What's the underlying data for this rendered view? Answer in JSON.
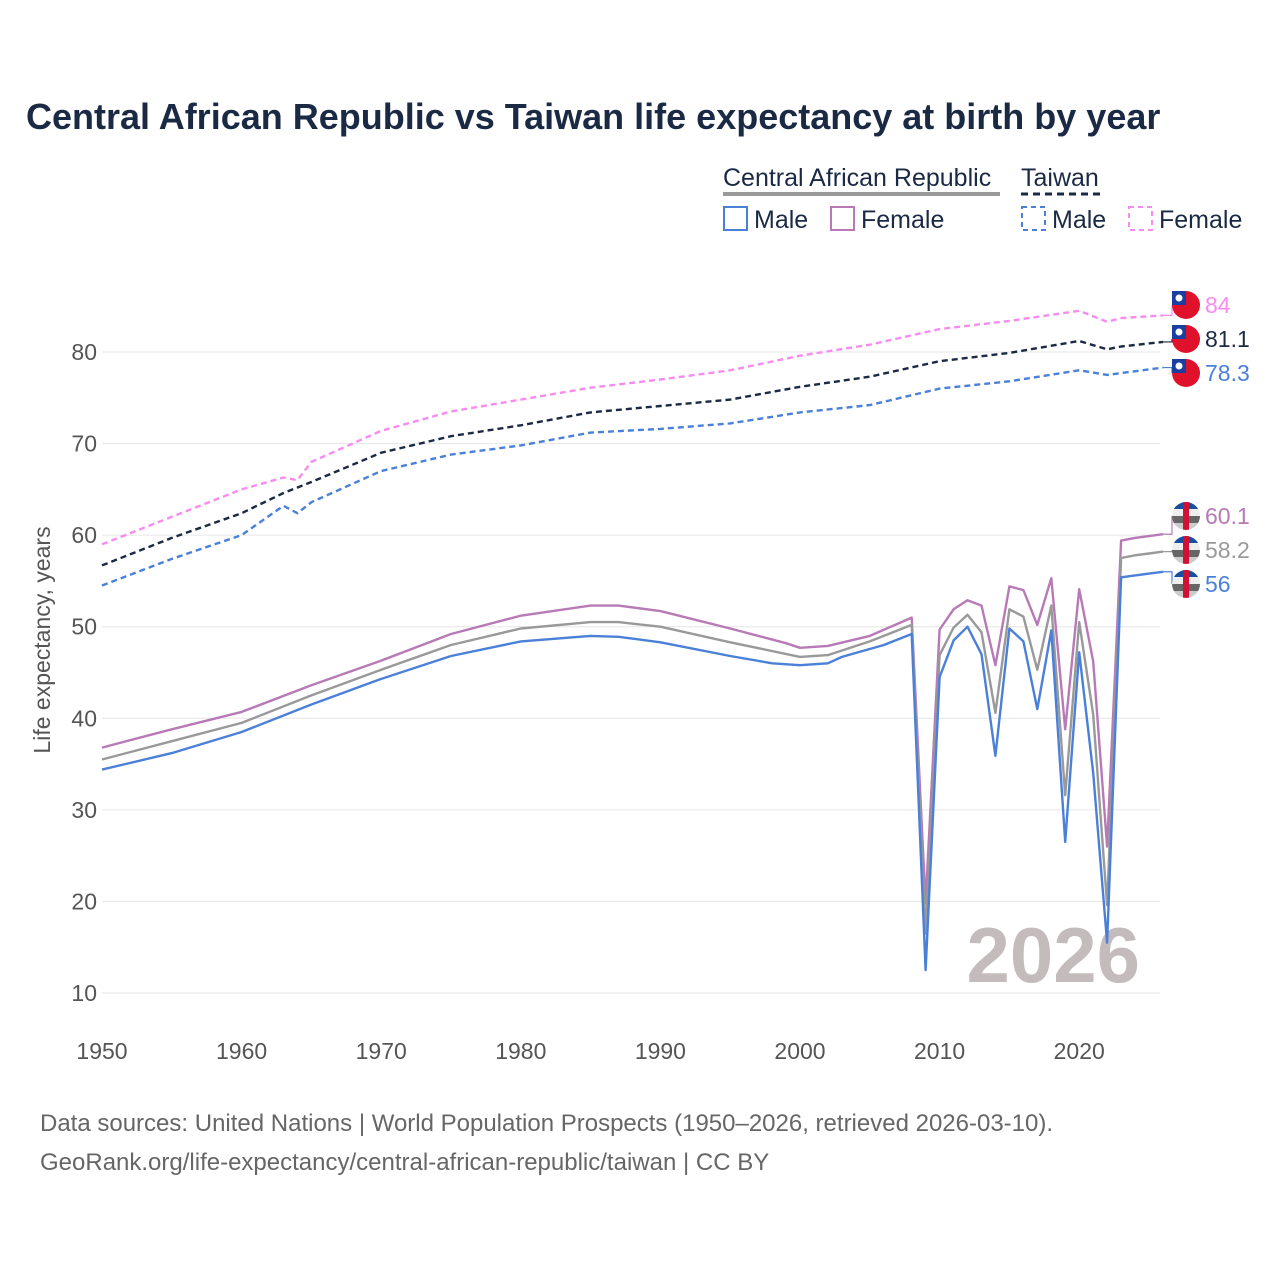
{
  "chart_data": {
    "type": "line",
    "title": "Central African Republic vs Taiwan life expectancy at birth by year",
    "xlabel": "",
    "ylabel": "Life expectancy, years",
    "xlim": [
      1950,
      2026
    ],
    "ylim": [
      10,
      85
    ],
    "x_ticks": [
      "1950",
      "1960",
      "1970",
      "1980",
      "1990",
      "2000",
      "2010",
      "2020"
    ],
    "y_ticks": [
      "10",
      "20",
      "30",
      "40",
      "50",
      "60",
      "70",
      "80"
    ],
    "grid": true,
    "year_watermark": "2026",
    "legend": {
      "placement": "top-right",
      "groups": [
        {
          "label": "Central African Republic",
          "items": [
            "Male",
            "Female"
          ]
        },
        {
          "label": "Taiwan",
          "items": [
            "Male",
            "Female"
          ]
        }
      ]
    },
    "series": [
      {
        "name": "Taiwan Female",
        "country": "Taiwan",
        "color": "#f78cf0",
        "dashed": true,
        "end_label": "84",
        "points": [
          [
            1950,
            59
          ],
          [
            1955,
            62
          ],
          [
            1960,
            65
          ],
          [
            1963,
            66.3
          ],
          [
            1964,
            66
          ],
          [
            1965,
            68
          ],
          [
            1970,
            71.4
          ],
          [
            1975,
            73.5
          ],
          [
            1980,
            74.8
          ],
          [
            1985,
            76.1
          ],
          [
            1990,
            77
          ],
          [
            1995,
            78
          ],
          [
            2000,
            79.6
          ],
          [
            2005,
            80.8
          ],
          [
            2010,
            82.5
          ],
          [
            2015,
            83.4
          ],
          [
            2020,
            84.5
          ],
          [
            2022,
            83.3
          ],
          [
            2023,
            83.7
          ],
          [
            2026,
            84
          ]
        ]
      },
      {
        "name": "Taiwan",
        "country": "Taiwan",
        "color": "#1b2a44",
        "dashed": true,
        "end_label": "81.1",
        "points": [
          [
            1950,
            56.7
          ],
          [
            1955,
            59.7
          ],
          [
            1960,
            62.4
          ],
          [
            1963,
            64.6
          ],
          [
            1965,
            65.8
          ],
          [
            1970,
            69
          ],
          [
            1975,
            70.8
          ],
          [
            1980,
            72
          ],
          [
            1985,
            73.4
          ],
          [
            1990,
            74.1
          ],
          [
            1995,
            74.8
          ],
          [
            2000,
            76.2
          ],
          [
            2005,
            77.3
          ],
          [
            2010,
            79
          ],
          [
            2015,
            79.9
          ],
          [
            2020,
            81.2
          ],
          [
            2022,
            80.3
          ],
          [
            2023,
            80.6
          ],
          [
            2026,
            81.1
          ]
        ]
      },
      {
        "name": "Taiwan Male",
        "country": "Taiwan",
        "color": "#4a80d8",
        "dashed": true,
        "end_label": "78.3",
        "points": [
          [
            1950,
            54.5
          ],
          [
            1955,
            57.4
          ],
          [
            1960,
            60
          ],
          [
            1963,
            63.2
          ],
          [
            1964,
            62.4
          ],
          [
            1965,
            63.6
          ],
          [
            1970,
            67
          ],
          [
            1975,
            68.8
          ],
          [
            1980,
            69.8
          ],
          [
            1985,
            71.2
          ],
          [
            1990,
            71.6
          ],
          [
            1995,
            72.2
          ],
          [
            2000,
            73.4
          ],
          [
            2005,
            74.2
          ],
          [
            2010,
            76
          ],
          [
            2015,
            76.8
          ],
          [
            2020,
            78
          ],
          [
            2022,
            77.5
          ],
          [
            2026,
            78.3
          ]
        ]
      },
      {
        "name": "Central African Republic Female",
        "country": "Central African Republic",
        "color": "#b77ab6",
        "dashed": false,
        "end_label": "60.1",
        "points": [
          [
            1950,
            36.8
          ],
          [
            1955,
            38.8
          ],
          [
            1960,
            40.7
          ],
          [
            1965,
            43.6
          ],
          [
            1970,
            46.3
          ],
          [
            1975,
            49.2
          ],
          [
            1980,
            51.2
          ],
          [
            1985,
            52.3
          ],
          [
            1987,
            52.3
          ],
          [
            1990,
            51.7
          ],
          [
            1995,
            49.8
          ],
          [
            1999,
            48.2
          ],
          [
            2000,
            47.7
          ],
          [
            2002,
            47.9
          ],
          [
            2005,
            49
          ],
          [
            2008,
            51
          ],
          [
            2009,
            19.8
          ],
          [
            2010,
            49.7
          ],
          [
            2011,
            51.9
          ],
          [
            2012,
            52.9
          ],
          [
            2013,
            52.3
          ],
          [
            2014,
            45.8
          ],
          [
            2015,
            54.4
          ],
          [
            2016,
            54
          ],
          [
            2017,
            50.2
          ],
          [
            2018,
            55.3
          ],
          [
            2019,
            38.8
          ],
          [
            2020,
            54.1
          ],
          [
            2021,
            46.2
          ],
          [
            2022,
            26
          ],
          [
            2023,
            59.4
          ],
          [
            2024,
            59.7
          ],
          [
            2025,
            59.9
          ],
          [
            2026,
            60.1
          ]
        ]
      },
      {
        "name": "Central African Republic",
        "country": "Central African Republic",
        "color": "#999999",
        "dashed": false,
        "end_label": "58.2",
        "points": [
          [
            1950,
            35.5
          ],
          [
            1955,
            37.5
          ],
          [
            1960,
            39.5
          ],
          [
            1965,
            42.5
          ],
          [
            1970,
            45.3
          ],
          [
            1975,
            48
          ],
          [
            1980,
            49.8
          ],
          [
            1985,
            50.5
          ],
          [
            1987,
            50.5
          ],
          [
            1990,
            50
          ],
          [
            1995,
            48.3
          ],
          [
            2000,
            46.7
          ],
          [
            2002,
            46.9
          ],
          [
            2005,
            48.4
          ],
          [
            2008,
            50.2
          ],
          [
            2009,
            16.5
          ],
          [
            2010,
            46.9
          ],
          [
            2011,
            49.9
          ],
          [
            2012,
            51.3
          ],
          [
            2013,
            49.4
          ],
          [
            2014,
            40.6
          ],
          [
            2015,
            51.9
          ],
          [
            2016,
            51.1
          ],
          [
            2017,
            45.3
          ],
          [
            2018,
            52.3
          ],
          [
            2019,
            31.6
          ],
          [
            2020,
            50.5
          ],
          [
            2021,
            40.4
          ],
          [
            2022,
            19.6
          ],
          [
            2023,
            57.5
          ],
          [
            2024,
            57.8
          ],
          [
            2025,
            58
          ],
          [
            2026,
            58.2
          ]
        ]
      },
      {
        "name": "Central African Republic Male",
        "country": "Central African Republic",
        "color": "#4a80d8",
        "dashed": false,
        "end_label": "56",
        "points": [
          [
            1950,
            34.4
          ],
          [
            1955,
            36.2
          ],
          [
            1960,
            38.5
          ],
          [
            1965,
            41.5
          ],
          [
            1970,
            44.3
          ],
          [
            1975,
            46.8
          ],
          [
            1980,
            48.4
          ],
          [
            1985,
            49
          ],
          [
            1987,
            48.9
          ],
          [
            1990,
            48.3
          ],
          [
            1995,
            46.8
          ],
          [
            1998,
            46
          ],
          [
            2000,
            45.8
          ],
          [
            2002,
            46
          ],
          [
            2003,
            46.7
          ],
          [
            2006,
            48
          ],
          [
            2008,
            49.2
          ],
          [
            2009,
            12.5
          ],
          [
            2010,
            44.5
          ],
          [
            2011,
            48.5
          ],
          [
            2012,
            50
          ],
          [
            2013,
            47
          ],
          [
            2014,
            35.9
          ],
          [
            2015,
            49.8
          ],
          [
            2016,
            48.4
          ],
          [
            2017,
            41
          ],
          [
            2018,
            49.6
          ],
          [
            2019,
            26.5
          ],
          [
            2020,
            47.2
          ],
          [
            2021,
            34
          ],
          [
            2022,
            15.5
          ],
          [
            2023,
            55.4
          ],
          [
            2024,
            55.6
          ],
          [
            2025,
            55.8
          ],
          [
            2026,
            56
          ]
        ]
      }
    ]
  },
  "source": {
    "line1": "Data sources: United Nations | World Population Prospects (1950–2026, retrieved 2026-03-10).",
    "line2": "GeoRank.org/life-expectancy/central-african-republic/taiwan | CC BY"
  }
}
